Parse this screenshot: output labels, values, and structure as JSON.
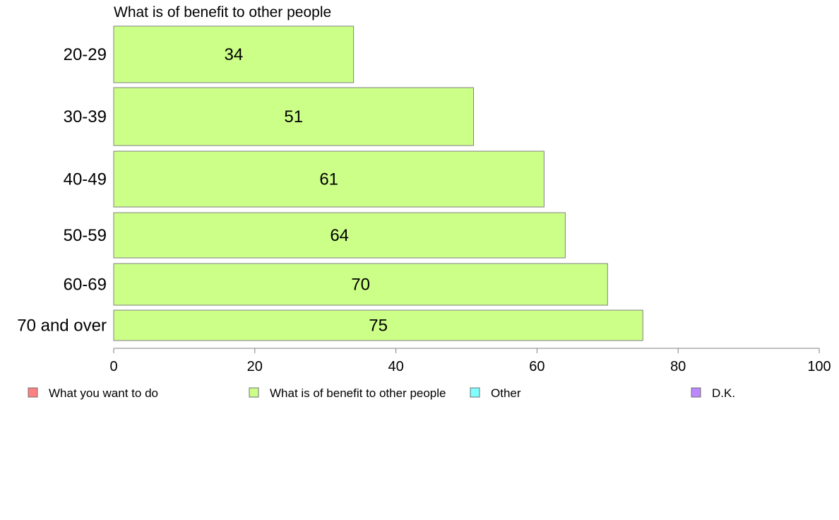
{
  "chart_data": {
    "type": "bar",
    "orientation": "horizontal",
    "title": "What is of benefit to other people",
    "categories": [
      "20-29",
      "30-39",
      "40-49",
      "50-59",
      "60-69",
      "70 and over"
    ],
    "series": [
      {
        "name": "What is of benefit to other people",
        "values": [
          34,
          51,
          61,
          64,
          70,
          75
        ],
        "value_labels": [
          "34",
          "51",
          "61",
          "64",
          "70",
          "75"
        ]
      }
    ],
    "xlim": [
      0,
      100
    ],
    "x_ticks": [
      0,
      20,
      40,
      60,
      80,
      100
    ],
    "x_tick_labels": [
      "0",
      "20",
      "40",
      "60",
      "80",
      "100"
    ],
    "grid": false,
    "legend": {
      "placement": "bottom",
      "entries": [
        {
          "label": "What you want to do",
          "color": "#ff8080"
        },
        {
          "label": "What is of benefit to other people",
          "color": "#ccff88"
        },
        {
          "label": "Other",
          "color": "#80ffff"
        },
        {
          "label": "D.K.",
          "color": "#bb88ff"
        }
      ]
    },
    "colors": {
      "bar_fill": "#ccff88",
      "bar_stroke": "#808080",
      "axis": "#808080"
    }
  }
}
